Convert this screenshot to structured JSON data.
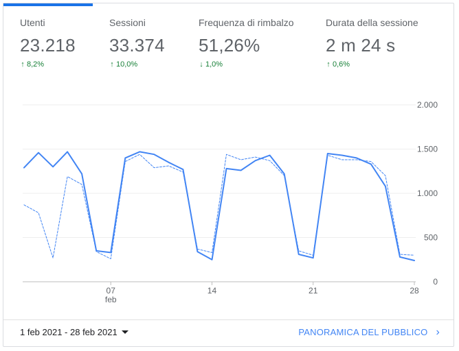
{
  "metrics": [
    {
      "label": "Utenti",
      "value": "23.218",
      "change": "8,2%",
      "direction": "up",
      "active": true
    },
    {
      "label": "Sessioni",
      "value": "33.374",
      "change": "10,0%",
      "direction": "up",
      "active": false
    },
    {
      "label": "Frequenza di rimbalzo",
      "value": "51,26%",
      "change": "1,0%",
      "direction": "down",
      "active": false
    },
    {
      "label": "Durata della sessione",
      "value": "2 m 24 s",
      "change": "0,6%",
      "direction": "up",
      "active": false
    }
  ],
  "colors": {
    "accent": "#1a73e8",
    "positive": "#188038",
    "line": "#4285f4",
    "link": "#4285f4"
  },
  "footer": {
    "date_range": "1 feb 2021 - 28 feb 2021",
    "audience_link": "PANORAMICA DEL PUBBLICO",
    "icons": {
      "dropdown": "caret-down-icon",
      "link": "chevron-right-icon"
    }
  },
  "chart_data": {
    "type": "line",
    "x": [
      1,
      2,
      3,
      4,
      5,
      6,
      7,
      8,
      9,
      10,
      11,
      12,
      13,
      14,
      15,
      16,
      17,
      18,
      19,
      20,
      21,
      22,
      23,
      24,
      25,
      26,
      27,
      28
    ],
    "x_tick_values": [
      7,
      14,
      21,
      28
    ],
    "x_tick_labels": [
      "07",
      "14",
      "21",
      "28"
    ],
    "x_sublabel": "feb",
    "y_ticks": [
      0,
      500,
      1000,
      1500,
      2000
    ],
    "y_tick_labels": [
      "0",
      "500",
      "1.000",
      "1.500",
      "2.000"
    ],
    "ylim": [
      0,
      2000
    ],
    "series": [
      {
        "style": "solid",
        "values": [
          1290,
          1460,
          1300,
          1470,
          1220,
          350,
          330,
          1400,
          1470,
          1440,
          1350,
          1270,
          340,
          250,
          1280,
          1260,
          1370,
          1430,
          1220,
          310,
          270,
          1450,
          1430,
          1400,
          1330,
          1080,
          280,
          240
        ]
      },
      {
        "style": "dashed",
        "values": [
          870,
          780,
          270,
          1190,
          1100,
          340,
          260,
          1360,
          1440,
          1290,
          1310,
          1240,
          370,
          330,
          1440,
          1380,
          1410,
          1370,
          1200,
          350,
          300,
          1430,
          1380,
          1380,
          1360,
          1200,
          310,
          300
        ]
      }
    ],
    "grid": true,
    "legend": "none"
  }
}
